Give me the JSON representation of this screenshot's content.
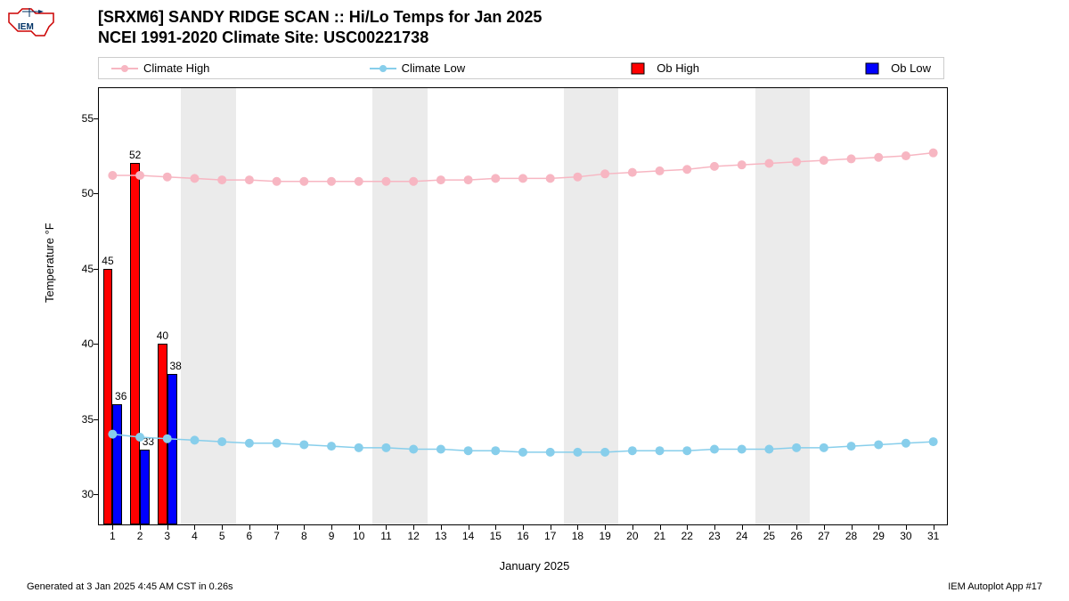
{
  "title_line1": "[SRXM6] SANDY RIDGE SCAN :: Hi/Lo Temps for Jan 2025",
  "title_line2": "NCEI 1991-2020 Climate Site: USC00221738",
  "ylabel": "Temperature °F",
  "xlabel": "January 2025",
  "footer_left": "Generated at 3 Jan 2025 4:45 AM CST in 0.26s",
  "footer_right": "IEM Autoplot App #17",
  "legend": {
    "climate_high": "Climate High",
    "climate_low": "Climate Low",
    "ob_high": "Ob High",
    "ob_low": "Ob Low"
  },
  "chart": {
    "type": "line+bar",
    "ylim": [
      28,
      57
    ],
    "yticks": [
      30,
      35,
      40,
      45,
      50,
      55
    ],
    "xrange": [
      1,
      31
    ],
    "xticks": [
      1,
      2,
      3,
      4,
      5,
      6,
      7,
      8,
      9,
      10,
      11,
      12,
      13,
      14,
      15,
      16,
      17,
      18,
      19,
      20,
      21,
      22,
      23,
      24,
      25,
      26,
      27,
      28,
      29,
      30,
      31
    ],
    "grey_bands": [
      [
        4,
        5
      ],
      [
        11,
        12
      ],
      [
        18,
        19
      ],
      [
        25,
        26
      ]
    ],
    "colors": {
      "climate_high": "#f7b6c2",
      "climate_low": "#87ceeb",
      "ob_high": "#ff0000",
      "ob_low": "#0000ff",
      "grey_band": "#ebebeb",
      "background": "#ffffff"
    },
    "climate_high": [
      51.2,
      51.2,
      51.1,
      51.0,
      50.9,
      50.9,
      50.8,
      50.8,
      50.8,
      50.8,
      50.8,
      50.8,
      50.9,
      50.9,
      51.0,
      51.0,
      51.0,
      51.1,
      51.3,
      51.4,
      51.5,
      51.6,
      51.8,
      51.9,
      52.0,
      52.1,
      52.2,
      52.3,
      52.4,
      52.5,
      52.7
    ],
    "climate_low": [
      34.0,
      33.8,
      33.7,
      33.6,
      33.5,
      33.4,
      33.4,
      33.3,
      33.2,
      33.1,
      33.1,
      33.0,
      33.0,
      32.9,
      32.9,
      32.8,
      32.8,
      32.8,
      32.8,
      32.9,
      32.9,
      32.9,
      33.0,
      33.0,
      33.0,
      33.1,
      33.1,
      33.2,
      33.3,
      33.4,
      33.5
    ],
    "ob_high_bars": [
      {
        "day": 1,
        "value": 45,
        "label": "45"
      },
      {
        "day": 2,
        "value": 52,
        "label": "52"
      },
      {
        "day": 3,
        "value": 40,
        "label": "40"
      }
    ],
    "ob_low_bars": [
      {
        "day": 1,
        "value": 36,
        "label": "36"
      },
      {
        "day": 2,
        "value": 33,
        "label": "33"
      },
      {
        "day": 3,
        "value": 38,
        "label": "38"
      }
    ],
    "bar_width": 0.35,
    "marker_size": 5,
    "line_width": 1.5,
    "title_fontsize": 18,
    "label_fontsize": 13,
    "tick_fontsize": 12
  }
}
